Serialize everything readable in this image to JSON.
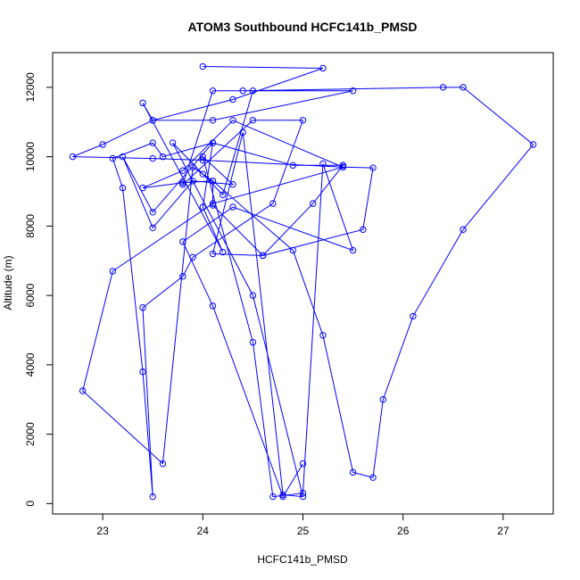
{
  "chart_data": {
    "type": "line",
    "title": "ATOM3 Southbound HCFC141b_PMSD",
    "xlabel": "HCFC141b_PMSD",
    "ylabel": "Altitude (m)",
    "xlim": [
      22.5,
      27.5
    ],
    "ylim": [
      -300,
      13000
    ],
    "x_ticks": [
      23,
      24,
      25,
      26,
      27
    ],
    "x_tick_labels": [
      "23",
      "24",
      "25",
      "26",
      "27"
    ],
    "y_ticks": [
      0,
      2000,
      4000,
      6000,
      8000,
      10000,
      12000
    ],
    "y_tick_labels": [
      "0",
      "2000",
      "4000",
      "6000",
      "8000",
      "10000",
      "12000"
    ],
    "grid": false,
    "series": [
      {
        "color": "#0000ff",
        "marker": "open-circle",
        "x": [
          24.0,
          25.2,
          24.3,
          23.5,
          23.0,
          22.7,
          23.5,
          24.0,
          25.4,
          25.7,
          25.6,
          24.6,
          24.1,
          24.1,
          23.8,
          23.4,
          23.8,
          24.3,
          25.4,
          24.1,
          23.1,
          22.8,
          23.6,
          23.9,
          24.1,
          24.9,
          25.2,
          25.5,
          25.7,
          25.8,
          26.1,
          26.6,
          27.3,
          26.6,
          26.4,
          24.4,
          24.1,
          23.8,
          24.5,
          25.0,
          24.7,
          23.9,
          23.8,
          23.4,
          23.5,
          23.4,
          23.2,
          23.1,
          23.5,
          23.6,
          24.1,
          24.0,
          24.2,
          23.4,
          23.5,
          24.1,
          25.5,
          24.5,
          24.2,
          24.0,
          23.7,
          24.5,
          25.0,
          24.8,
          24.4,
          24.1,
          24.6,
          25.1,
          25.4,
          25.4,
          24.9,
          24.1,
          23.5,
          23.2,
          23.5,
          23.9,
          24.3,
          24.0,
          24.5,
          24.7,
          25.0,
          25.2,
          25.5,
          24.3,
          23.8,
          24.1,
          24.8,
          25.0
        ],
        "y": [
          12600,
          12550,
          11650,
          11050,
          10350,
          10000,
          9950,
          9900,
          9700,
          9680,
          7900,
          7150,
          8600,
          9300,
          9250,
          9100,
          9600,
          11050,
          9700,
          8650,
          6700,
          3250,
          1150,
          9700,
          9300,
          7300,
          4850,
          900,
          750,
          3000,
          5400,
          7900,
          10350,
          12000,
          12000,
          11900,
          11900,
          9200,
          11050,
          11050,
          8650,
          7100,
          6550,
          5650,
          200,
          3800,
          9100,
          9950,
          10400,
          10000,
          10400,
          8550,
          7250,
          11550,
          11050,
          11050,
          11900,
          11900,
          8900,
          9500,
          10400,
          6000,
          200,
          250,
          10700,
          7200,
          7150,
          8650,
          9750,
          9750,
          9750,
          10400,
          8400,
          10000,
          7950,
          9300,
          9200,
          10000,
          4650,
          200,
          300,
          9800,
          7300,
          8550,
          7550,
          5700,
          200,
          1150
        ]
      }
    ]
  }
}
